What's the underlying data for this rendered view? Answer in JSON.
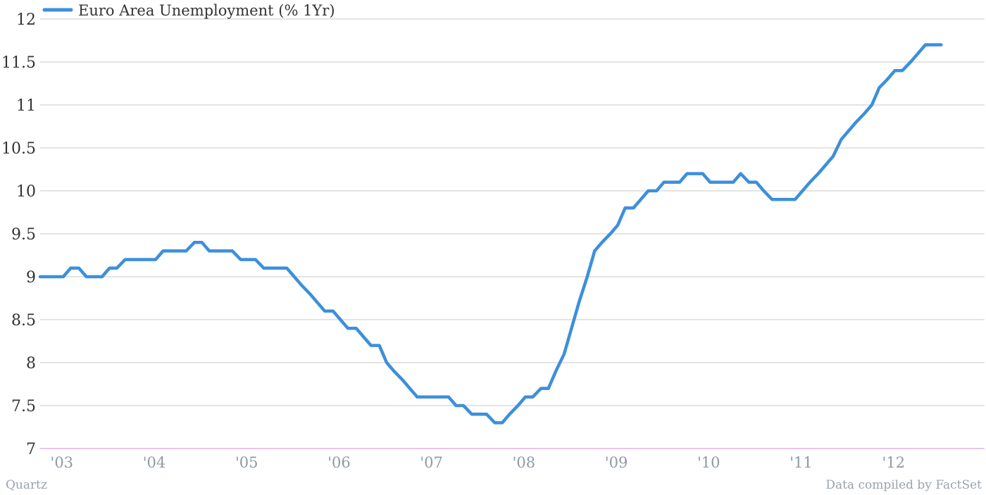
{
  "chart_data": {
    "type": "line",
    "title": "",
    "xlabel": "",
    "ylabel": "",
    "ylim": [
      7,
      12
    ],
    "yticks": [
      "7",
      "7.5",
      "8",
      "8.5",
      "9",
      "9.5",
      "10",
      "10.5",
      "11",
      "11.5",
      "12"
    ],
    "xticks": [
      {
        "label": "'03",
        "x": 2003.0
      },
      {
        "label": "'04",
        "x": 2004.0
      },
      {
        "label": "'05",
        "x": 2005.0
      },
      {
        "label": "'06",
        "x": 2006.0
      },
      {
        "label": "'07",
        "x": 2007.0
      },
      {
        "label": "'08",
        "x": 2008.0
      },
      {
        "label": "'09",
        "x": 2009.0
      },
      {
        "label": "'10",
        "x": 2010.0
      },
      {
        "label": "'11",
        "x": 2011.0
      },
      {
        "label": "'12",
        "x": 2012.0
      }
    ],
    "grid": true,
    "legend_position": "top-left",
    "series": [
      {
        "name": "Euro Area Unemployment (% 1Yr)",
        "color": "#3d8fdb",
        "points": [
          [
            2002.75,
            9.0
          ],
          [
            2003.0,
            9.0
          ],
          [
            2003.08,
            9.1
          ],
          [
            2003.17,
            9.1
          ],
          [
            2003.25,
            9.0
          ],
          [
            2003.42,
            9.0
          ],
          [
            2003.5,
            9.1
          ],
          [
            2003.58,
            9.1
          ],
          [
            2003.67,
            9.2
          ],
          [
            2004.0,
            9.2
          ],
          [
            2004.08,
            9.3
          ],
          [
            2004.33,
            9.3
          ],
          [
            2004.42,
            9.4
          ],
          [
            2004.5,
            9.4
          ],
          [
            2004.58,
            9.3
          ],
          [
            2004.83,
            9.3
          ],
          [
            2004.92,
            9.2
          ],
          [
            2005.08,
            9.2
          ],
          [
            2005.17,
            9.1
          ],
          [
            2005.42,
            9.1
          ],
          [
            2005.5,
            9.0
          ],
          [
            2005.58,
            8.9
          ],
          [
            2005.67,
            8.8
          ],
          [
            2005.75,
            8.7
          ],
          [
            2005.83,
            8.6
          ],
          [
            2005.92,
            8.6
          ],
          [
            2006.0,
            8.5
          ],
          [
            2006.08,
            8.4
          ],
          [
            2006.17,
            8.4
          ],
          [
            2006.25,
            8.3
          ],
          [
            2006.33,
            8.2
          ],
          [
            2006.42,
            8.2
          ],
          [
            2006.5,
            8.0
          ],
          [
            2006.58,
            7.9
          ],
          [
            2006.67,
            7.8
          ],
          [
            2006.75,
            7.7
          ],
          [
            2006.83,
            7.6
          ],
          [
            2007.17,
            7.6
          ],
          [
            2007.25,
            7.5
          ],
          [
            2007.33,
            7.5
          ],
          [
            2007.42,
            7.4
          ],
          [
            2007.58,
            7.4
          ],
          [
            2007.67,
            7.3
          ],
          [
            2007.75,
            7.3
          ],
          [
            2007.83,
            7.4
          ],
          [
            2007.92,
            7.5
          ],
          [
            2008.0,
            7.6
          ],
          [
            2008.08,
            7.6
          ],
          [
            2008.17,
            7.7
          ],
          [
            2008.25,
            7.7
          ],
          [
            2008.33,
            7.9
          ],
          [
            2008.42,
            8.1
          ],
          [
            2008.5,
            8.4
          ],
          [
            2008.58,
            8.7
          ],
          [
            2008.67,
            9.0
          ],
          [
            2008.75,
            9.3
          ],
          [
            2008.83,
            9.4
          ],
          [
            2008.92,
            9.5
          ],
          [
            2009.0,
            9.6
          ],
          [
            2009.08,
            9.8
          ],
          [
            2009.17,
            9.8
          ],
          [
            2009.25,
            9.9
          ],
          [
            2009.33,
            10.0
          ],
          [
            2009.42,
            10.0
          ],
          [
            2009.5,
            10.1
          ],
          [
            2009.67,
            10.1
          ],
          [
            2009.75,
            10.2
          ],
          [
            2009.92,
            10.2
          ],
          [
            2010.0,
            10.1
          ],
          [
            2010.25,
            10.1
          ],
          [
            2010.33,
            10.2
          ],
          [
            2010.42,
            10.1
          ],
          [
            2010.5,
            10.1
          ],
          [
            2010.58,
            10.0
          ],
          [
            2010.67,
            9.9
          ],
          [
            2010.92,
            9.9
          ],
          [
            2011.0,
            10.0
          ],
          [
            2011.08,
            10.1
          ],
          [
            2011.17,
            10.2
          ],
          [
            2011.25,
            10.3
          ],
          [
            2011.33,
            10.4
          ],
          [
            2011.42,
            10.6
          ],
          [
            2011.5,
            10.7
          ],
          [
            2011.58,
            10.8
          ],
          [
            2011.67,
            10.9
          ],
          [
            2011.75,
            11.0
          ],
          [
            2011.83,
            11.2
          ],
          [
            2011.92,
            11.3
          ],
          [
            2012.0,
            11.4
          ],
          [
            2012.08,
            11.4
          ],
          [
            2012.17,
            11.5
          ],
          [
            2012.25,
            11.6
          ],
          [
            2012.33,
            11.7
          ],
          [
            2012.5,
            11.7
          ]
        ]
      }
    ]
  },
  "footer": {
    "left": "Quartz",
    "right": "Data compiled by FactSet"
  }
}
